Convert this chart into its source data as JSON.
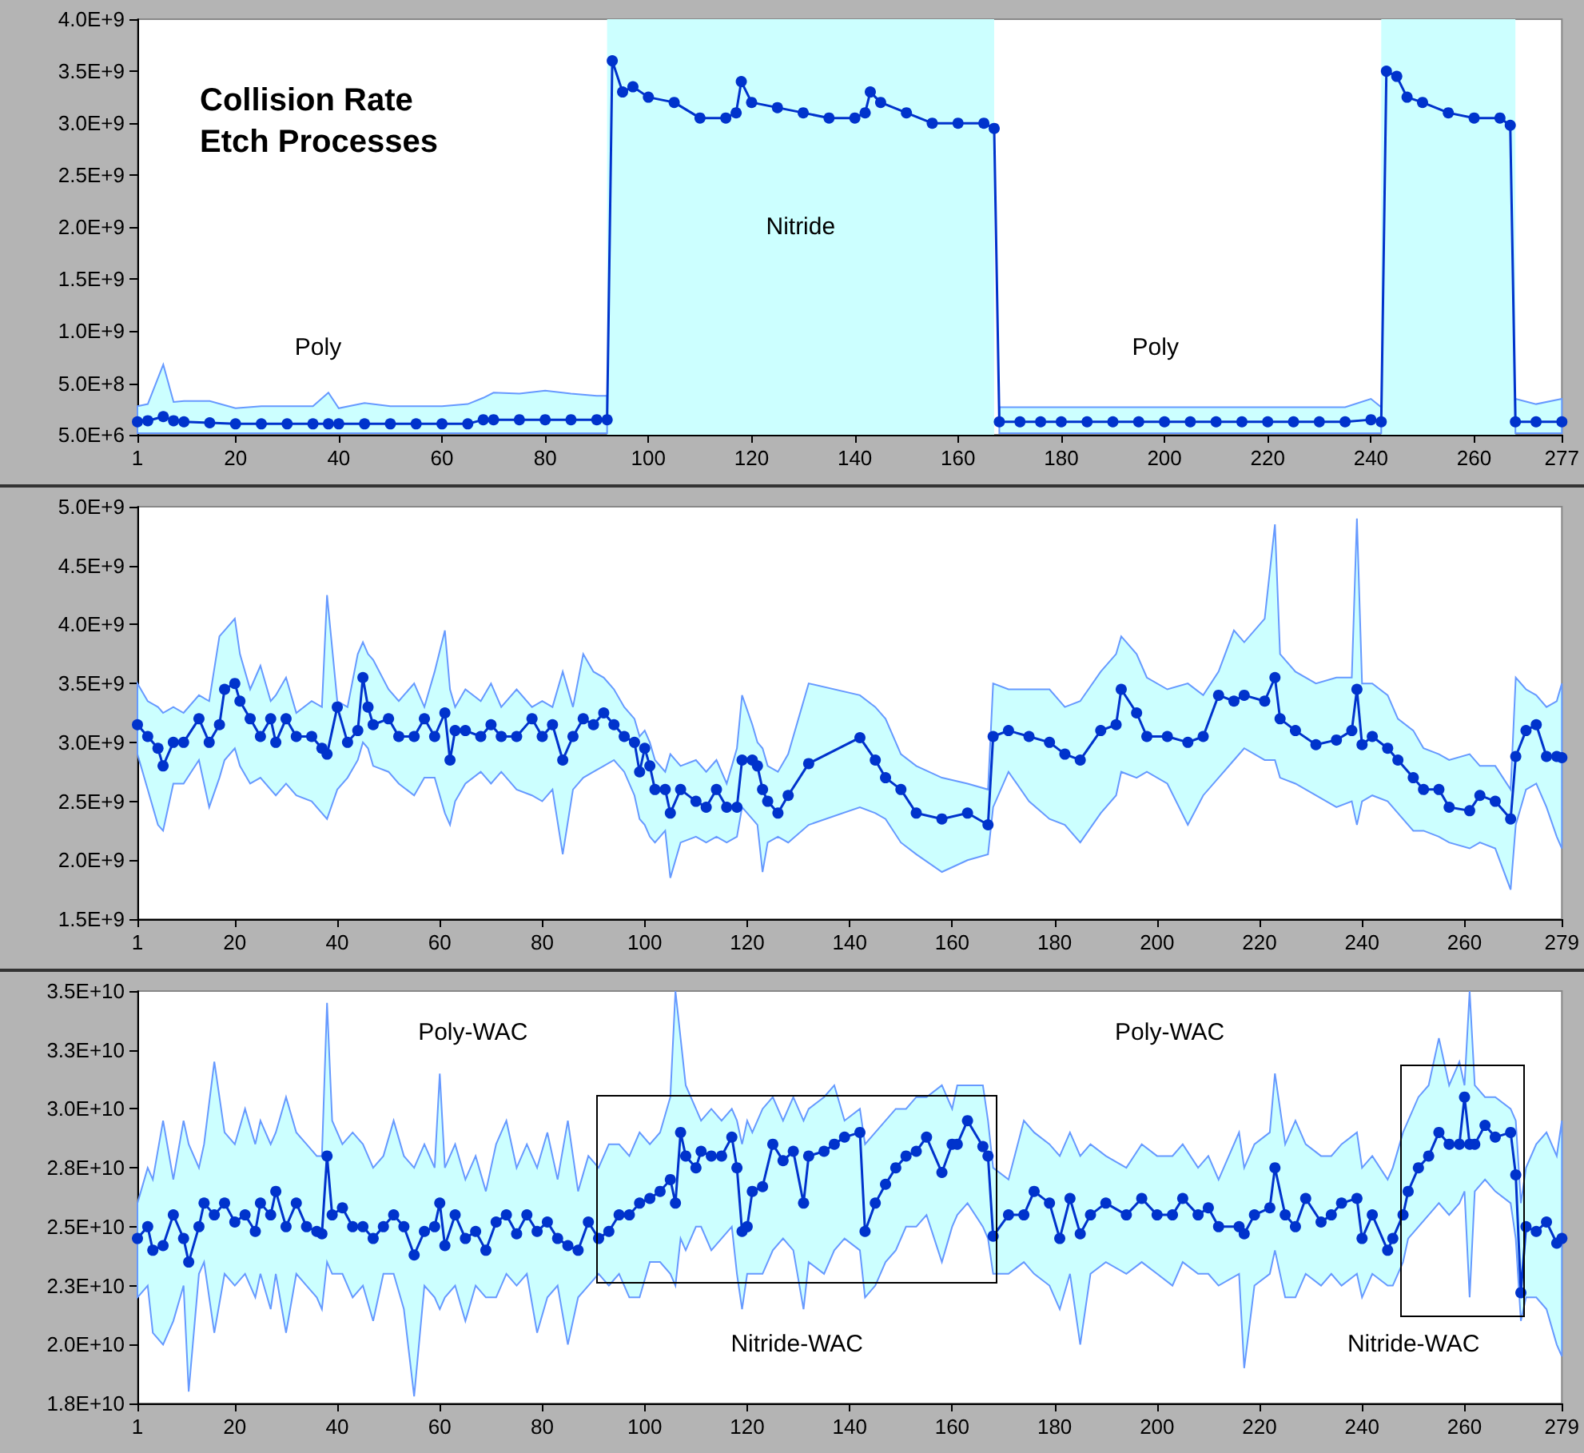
{
  "chart_data": [
    {
      "type": "line",
      "title": "Collision Rate Etch Processes",
      "marker": "circle",
      "xlim": [
        1,
        277
      ],
      "xticks": [
        1,
        20,
        40,
        60,
        80,
        100,
        120,
        140,
        160,
        180,
        200,
        220,
        240,
        260,
        277
      ],
      "ylim": [
        5000000.0,
        4000000000.0
      ],
      "yticks": [
        {
          "value": 5000000.0,
          "label": "5.0E+6"
        },
        {
          "value": 500000000.0,
          "label": "5.0E+8"
        },
        {
          "value": 1000000000.0,
          "label": "1.0E+9"
        },
        {
          "value": 1500000000.0,
          "label": "1.5E+9"
        },
        {
          "value": 2000000000.0,
          "label": "2.0E+9"
        },
        {
          "value": 2500000000.0,
          "label": "2.5E+9"
        },
        {
          "value": 3000000000.0,
          "label": "3.0E+9"
        },
        {
          "value": 3500000000.0,
          "label": "3.5E+9"
        },
        {
          "value": 4000000000.0,
          "label": "4.0E+9"
        }
      ],
      "x": [
        1,
        3,
        6,
        8,
        10,
        15,
        20,
        25,
        30,
        35,
        38,
        40,
        45,
        50,
        55,
        60,
        65,
        68,
        70,
        75,
        80,
        85,
        90,
        92,
        93,
        95,
        97,
        100,
        105,
        110,
        115,
        117,
        118,
        120,
        125,
        130,
        135,
        140,
        142,
        143,
        145,
        150,
        155,
        160,
        165,
        167,
        168,
        172,
        176,
        180,
        185,
        190,
        195,
        200,
        205,
        210,
        215,
        220,
        225,
        230,
        235,
        240,
        242,
        243,
        245,
        247,
        250,
        255,
        260,
        265,
        267,
        268,
        272,
        277
      ],
      "series": [
        {
          "color": "#0033cc",
          "values": [
            130000000.0,
            140000000.0,
            180000000.0,
            140000000.0,
            130000000.0,
            120000000.0,
            110000000.0,
            110000000.0,
            110000000.0,
            110000000.0,
            110000000.0,
            110000000.0,
            110000000.0,
            110000000.0,
            110000000.0,
            110000000.0,
            110000000.0,
            150000000.0,
            150000000.0,
            150000000.0,
            150000000.0,
            150000000.0,
            150000000.0,
            150000000.0,
            3600000000.0,
            3300000000.0,
            3350000000.0,
            3250000000.0,
            3200000000.0,
            3050000000.0,
            3050000000.0,
            3100000000.0,
            3400000000.0,
            3200000000.0,
            3150000000.0,
            3100000000.0,
            3050000000.0,
            3050000000.0,
            3100000000.0,
            3300000000.0,
            3200000000.0,
            3100000000.0,
            3000000000.0,
            3000000000.0,
            3000000000.0,
            2950000000.0,
            130000000.0,
            130000000.0,
            130000000.0,
            130000000.0,
            130000000.0,
            130000000.0,
            130000000.0,
            130000000.0,
            130000000.0,
            130000000.0,
            130000000.0,
            130000000.0,
            130000000.0,
            130000000.0,
            130000000.0,
            150000000.0,
            130000000.0,
            3500000000.0,
            3450000000.0,
            3250000000.0,
            3200000000.0,
            3100000000.0,
            3050000000.0,
            3050000000.0,
            2980000000.0,
            130000000.0,
            130000000.0,
            130000000.0
          ],
          "lower": [
            20000000.0,
            20000000.0,
            20000000.0,
            20000000.0,
            20000000.0,
            20000000.0,
            20000000.0,
            20000000.0,
            20000000.0,
            20000000.0,
            20000000.0,
            20000000.0,
            20000000.0,
            20000000.0,
            20000000.0,
            20000000.0,
            20000000.0,
            20000000.0,
            20000000.0,
            20000000.0,
            20000000.0,
            20000000.0,
            20000000.0,
            20000000.0,
            null,
            null,
            null,
            null,
            null,
            null,
            null,
            null,
            null,
            null,
            null,
            null,
            null,
            null,
            null,
            null,
            null,
            null,
            null,
            null,
            null,
            null,
            20000000.0,
            20000000.0,
            20000000.0,
            20000000.0,
            20000000.0,
            20000000.0,
            20000000.0,
            20000000.0,
            20000000.0,
            20000000.0,
            20000000.0,
            20000000.0,
            20000000.0,
            20000000.0,
            20000000.0,
            20000000.0,
            20000000.0,
            null,
            null,
            null,
            null,
            null,
            null,
            null,
            null,
            20000000.0,
            20000000.0,
            20000000.0
          ],
          "upper": [
            280000000.0,
            300000000.0,
            680000000.0,
            320000000.0,
            330000000.0,
            330000000.0,
            260000000.0,
            280000000.0,
            280000000.0,
            280000000.0,
            410000000.0,
            260000000.0,
            310000000.0,
            280000000.0,
            280000000.0,
            280000000.0,
            300000000.0,
            360000000.0,
            410000000.0,
            400000000.0,
            430000000.0,
            400000000.0,
            380000000.0,
            380000000.0,
            null,
            null,
            null,
            null,
            null,
            null,
            null,
            null,
            null,
            null,
            null,
            null,
            null,
            null,
            null,
            null,
            null,
            null,
            null,
            null,
            null,
            null,
            270000000.0,
            270000000.0,
            270000000.0,
            270000000.0,
            270000000.0,
            270000000.0,
            270000000.0,
            270000000.0,
            270000000.0,
            270000000.0,
            270000000.0,
            270000000.0,
            270000000.0,
            270000000.0,
            270000000.0,
            350000000.0,
            270000000.0,
            null,
            null,
            null,
            null,
            null,
            null,
            null,
            null,
            350000000.0,
            300000000.0,
            350000000.0
          ]
        }
      ],
      "bands": [
        {
          "axis": "x",
          "from": 92,
          "to": 167,
          "label": "Nitride",
          "color": "#ccffff"
        },
        {
          "axis": "x",
          "from": 242,
          "to": 268,
          "color": "#ccffff"
        }
      ],
      "annotations": [
        "Poly",
        "Poly"
      ]
    },
    {
      "type": "line",
      "marker": "circle",
      "xlim": [
        1,
        279
      ],
      "xticks": [
        1,
        20,
        40,
        60,
        80,
        100,
        120,
        140,
        160,
        180,
        200,
        220,
        240,
        260,
        279
      ],
      "ylim": [
        1500000000.0,
        5000000000.0
      ],
      "yticks": [
        {
          "value": 1500000000.0,
          "label": "1.5E+9"
        },
        {
          "value": 2000000000.0,
          "label": "2.0E+9"
        },
        {
          "value": 2500000000.0,
          "label": "2.5E+9"
        },
        {
          "value": 3000000000.0,
          "label": "3.0E+9"
        },
        {
          "value": 3500000000.0,
          "label": "3.5E+9"
        },
        {
          "value": 4000000000.0,
          "label": "4.0E+9"
        },
        {
          "value": 4500000000.0,
          "label": "4.5E+9"
        },
        {
          "value": 5000000000.0,
          "label": "5.0E+9"
        }
      ],
      "x": [
        1,
        3,
        5,
        6,
        8,
        10,
        13,
        15,
        17,
        18,
        20,
        21,
        23,
        25,
        27,
        28,
        30,
        32,
        35,
        37,
        38,
        40,
        42,
        44,
        45,
        46,
        47,
        50,
        52,
        55,
        57,
        59,
        61,
        62,
        63,
        65,
        68,
        70,
        72,
        75,
        78,
        80,
        82,
        84,
        86,
        88,
        90,
        92,
        94,
        96,
        98,
        99,
        100,
        101,
        102,
        104,
        105,
        107,
        110,
        112,
        114,
        116,
        118,
        119,
        121,
        122,
        123,
        124,
        126,
        128,
        132,
        142,
        145,
        147,
        150,
        153,
        158,
        163,
        167,
        168,
        171,
        175,
        179,
        182,
        185,
        189,
        192,
        193,
        196,
        198,
        202,
        206,
        209,
        212,
        215,
        217,
        221,
        223,
        224,
        227,
        231,
        235,
        238,
        239,
        240,
        242,
        245,
        247,
        250,
        252,
        255,
        257,
        261,
        263,
        266,
        269,
        270,
        272,
        274,
        276,
        278,
        279
      ],
      "series": [
        {
          "color": "#0033cc",
          "values": [
            3150000000.0,
            3050000000.0,
            2950000000.0,
            2800000000.0,
            3000000000.0,
            3000000000.0,
            3200000000.0,
            3000000000.0,
            3150000000.0,
            3450000000.0,
            3500000000.0,
            3350000000.0,
            3200000000.0,
            3050000000.0,
            3200000000.0,
            3000000000.0,
            3200000000.0,
            3050000000.0,
            3050000000.0,
            2950000000.0,
            2900000000.0,
            3300000000.0,
            3000000000.0,
            3100000000.0,
            3550000000.0,
            3300000000.0,
            3150000000.0,
            3200000000.0,
            3050000000.0,
            3050000000.0,
            3200000000.0,
            3050000000.0,
            3250000000.0,
            2850000000.0,
            3100000000.0,
            3100000000.0,
            3050000000.0,
            3150000000.0,
            3050000000.0,
            3050000000.0,
            3200000000.0,
            3050000000.0,
            3150000000.0,
            2850000000.0,
            3050000000.0,
            3200000000.0,
            3150000000.0,
            3250000000.0,
            3150000000.0,
            3050000000.0,
            3000000000.0,
            2750000000.0,
            2950000000.0,
            2800000000.0,
            2600000000.0,
            2600000000.0,
            2400000000.0,
            2600000000.0,
            2500000000.0,
            2450000000.0,
            2600000000.0,
            2450000000.0,
            2450000000.0,
            2850000000.0,
            2850000000.0,
            2800000000.0,
            2600000000.0,
            2500000000.0,
            2400000000.0,
            2550000000.0,
            2820000000.0,
            3040000000.0,
            2850000000.0,
            2700000000.0,
            2600000000.0,
            2400000000.0,
            2350000000.0,
            2400000000.0,
            2300000000.0,
            3050000000.0,
            3100000000.0,
            3050000000.0,
            3000000000.0,
            2900000000.0,
            2850000000.0,
            3100000000.0,
            3150000000.0,
            3450000000.0,
            3250000000.0,
            3050000000.0,
            3050000000.0,
            3000000000.0,
            3050000000.0,
            3400000000.0,
            3350000000.0,
            3400000000.0,
            3350000000.0,
            3550000000.0,
            3200000000.0,
            3100000000.0,
            2980000000.0,
            3020000000.0,
            3100000000.0,
            3450000000.0,
            2980000000.0,
            3050000000.0,
            2950000000.0,
            2850000000.0,
            2700000000.0,
            2600000000.0,
            2600000000.0,
            2450000000.0,
            2420000000.0,
            2550000000.0,
            2500000000.0,
            2350000000.0,
            2880000000.0,
            3100000000.0,
            3150000000.0,
            2880000000.0,
            2880000000.0,
            2870000000.0
          ],
          "lower": [
            2900000000.0,
            2600000000.0,
            2300000000.0,
            2250000000.0,
            2650000000.0,
            2650000000.0,
            2850000000.0,
            2450000000.0,
            2700000000.0,
            2850000000.0,
            2950000000.0,
            2800000000.0,
            2650000000.0,
            2700000000.0,
            2600000000.0,
            2550000000.0,
            2650000000.0,
            2550000000.0,
            2500000000.0,
            2400000000.0,
            2350000000.0,
            2600000000.0,
            2700000000.0,
            2850000000.0,
            3000000000.0,
            2950000000.0,
            2800000000.0,
            2750000000.0,
            2650000000.0,
            2550000000.0,
            2700000000.0,
            2700000000.0,
            2400000000.0,
            2300000000.0,
            2500000000.0,
            2650000000.0,
            2750000000.0,
            2650000000.0,
            2750000000.0,
            2600000000.0,
            2550000000.0,
            2500000000.0,
            2600000000.0,
            2050000000.0,
            2600000000.0,
            2700000000.0,
            2750000000.0,
            2800000000.0,
            2850000000.0,
            2750000000.0,
            2550000000.0,
            2350000000.0,
            2300000000.0,
            2200000000.0,
            2150000000.0,
            2250000000.0,
            1850000000.0,
            2150000000.0,
            2200000000.0,
            2150000000.0,
            2200000000.0,
            2150000000.0,
            2200000000.0,
            2450000000.0,
            2350000000.0,
            2300000000.0,
            1900000000.0,
            2150000000.0,
            2200000000.0,
            2150000000.0,
            2300000000.0,
            2450000000.0,
            2400000000.0,
            2350000000.0,
            2150000000.0,
            2050000000.0,
            1900000000.0,
            2000000000.0,
            2050000000.0,
            2450000000.0,
            2750000000.0,
            2500000000.0,
            2350000000.0,
            2300000000.0,
            2150000000.0,
            2400000000.0,
            2550000000.0,
            2750000000.0,
            2700000000.0,
            2750000000.0,
            2650000000.0,
            2300000000.0,
            2550000000.0,
            2700000000.0,
            2850000000.0,
            2950000000.0,
            2850000000.0,
            2850000000.0,
            2700000000.0,
            2650000000.0,
            2550000000.0,
            2450000000.0,
            2500000000.0,
            2300000000.0,
            2500000000.0,
            2550000000.0,
            2500000000.0,
            2400000000.0,
            2250000000.0,
            2250000000.0,
            2200000000.0,
            2150000000.0,
            2100000000.0,
            2150000000.0,
            2100000000.0,
            1750000000.0,
            2300000000.0,
            2600000000.0,
            2650000000.0,
            2450000000.0,
            2200000000.0,
            2100000000.0
          ],
          "upper": [
            3500000000.0,
            3350000000.0,
            3300000000.0,
            3250000000.0,
            3300000000.0,
            3250000000.0,
            3400000000.0,
            3350000000.0,
            3900000000.0,
            3950000000.0,
            4050000000.0,
            3750000000.0,
            3450000000.0,
            3650000000.0,
            3350000000.0,
            3400000000.0,
            3550000000.0,
            3250000000.0,
            3350000000.0,
            3300000000.0,
            4250000000.0,
            3350000000.0,
            3300000000.0,
            3750000000.0,
            3850000000.0,
            3750000000.0,
            3700000000.0,
            3450000000.0,
            3350000000.0,
            3500000000.0,
            3300000000.0,
            3600000000.0,
            3950000000.0,
            3450000000.0,
            3300000000.0,
            3450000000.0,
            3350000000.0,
            3500000000.0,
            3300000000.0,
            3450000000.0,
            3300000000.0,
            3350000000.0,
            3300000000.0,
            3600000000.0,
            3300000000.0,
            3750000000.0,
            3600000000.0,
            3550000000.0,
            3450000000.0,
            3300000000.0,
            3200000000.0,
            3050000000.0,
            3100000000.0,
            3000000000.0,
            2850000000.0,
            2750000000.0,
            2900000000.0,
            2800000000.0,
            2850000000.0,
            2750000000.0,
            2850000000.0,
            2650000000.0,
            2950000000.0,
            3400000000.0,
            3150000000.0,
            3000000000.0,
            2950000000.0,
            2800000000.0,
            2750000000.0,
            2900000000.0,
            3500000000.0,
            3400000000.0,
            3300000000.0,
            3200000000.0,
            2900000000.0,
            2800000000.0,
            2700000000.0,
            2650000000.0,
            2600000000.0,
            3500000000.0,
            3450000000.0,
            3450000000.0,
            3450000000.0,
            3300000000.0,
            3350000000.0,
            3600000000.0,
            3750000000.0,
            3900000000.0,
            3750000000.0,
            3550000000.0,
            3450000000.0,
            3500000000.0,
            3400000000.0,
            3600000000.0,
            3950000000.0,
            3850000000.0,
            4050000000.0,
            4850000000.0,
            3750000000.0,
            3600000000.0,
            3500000000.0,
            3550000000.0,
            3550000000.0,
            4900000000.0,
            3500000000.0,
            3500000000.0,
            3400000000.0,
            3200000000.0,
            3100000000.0,
            2950000000.0,
            2900000000.0,
            2850000000.0,
            2900000000.0,
            2800000000.0,
            2800000000.0,
            2600000000.0,
            3550000000.0,
            3450000000.0,
            3400000000.0,
            3300000000.0,
            3350000000.0,
            3500000000.0
          ]
        }
      ]
    },
    {
      "type": "line",
      "marker": "circle",
      "xlim": [
        1,
        279
      ],
      "xticks": [
        1,
        20,
        40,
        60,
        80,
        100,
        120,
        140,
        160,
        180,
        200,
        220,
        240,
        260,
        279
      ],
      "ylim": [
        17500000000.0,
        35000000000.0
      ],
      "yticks": [
        {
          "value": 17500000000.0,
          "label": "1.8E+10"
        },
        {
          "value": 20000000000.0,
          "label": "2.0E+10"
        },
        {
          "value": 22500000000.0,
          "label": "2.3E+10"
        },
        {
          "value": 25000000000.0,
          "label": "2.5E+10"
        },
        {
          "value": 27500000000.0,
          "label": "2.8E+10"
        },
        {
          "value": 30000000000.0,
          "label": "3.0E+10"
        },
        {
          "value": 32500000000.0,
          "label": "3.3E+10"
        },
        {
          "value": 35000000000.0,
          "label": "3.5E+10"
        }
      ],
      "x": [
        1,
        3,
        4,
        6,
        8,
        10,
        11,
        13,
        14,
        16,
        18,
        20,
        22,
        24,
        25,
        27,
        28,
        30,
        32,
        34,
        36,
        37,
        38,
        39,
        41,
        43,
        45,
        47,
        49,
        51,
        53,
        55,
        57,
        59,
        60,
        61,
        63,
        65,
        67,
        69,
        71,
        73,
        75,
        77,
        79,
        81,
        83,
        85,
        87,
        89,
        91,
        93,
        95,
        97,
        99,
        101,
        103,
        105,
        106,
        107,
        108,
        110,
        111,
        113,
        115,
        117,
        118,
        119,
        120,
        121,
        123,
        125,
        127,
        129,
        131,
        132,
        135,
        137,
        139,
        142,
        143,
        145,
        147,
        149,
        151,
        153,
        155,
        158,
        160,
        161,
        163,
        166,
        167,
        168,
        171,
        174,
        176,
        179,
        181,
        183,
        185,
        187,
        190,
        194,
        197,
        200,
        203,
        205,
        208,
        210,
        212,
        216,
        217,
        219,
        222,
        223,
        225,
        227,
        229,
        232,
        234,
        236,
        239,
        240,
        242,
        245,
        246,
        248,
        249,
        251,
        253,
        255,
        257,
        259,
        260,
        261,
        262,
        264,
        266,
        269,
        270,
        271,
        272,
        274,
        276,
        278,
        279
      ],
      "series": [
        {
          "color": "#0033cc",
          "values": [
            24500000000.0,
            25000000000.0,
            24000000000.0,
            24200000000.0,
            25500000000.0,
            24500000000.0,
            23500000000.0,
            25000000000.0,
            26000000000.0,
            25500000000.0,
            26000000000.0,
            25200000000.0,
            25500000000.0,
            24800000000.0,
            26000000000.0,
            25500000000.0,
            26500000000.0,
            25000000000.0,
            26000000000.0,
            25000000000.0,
            24800000000.0,
            24700000000.0,
            28000000000.0,
            25500000000.0,
            25800000000.0,
            25000000000.0,
            25000000000.0,
            24500000000.0,
            25000000000.0,
            25500000000.0,
            25000000000.0,
            23800000000.0,
            24800000000.0,
            25000000000.0,
            26000000000.0,
            24200000000.0,
            25500000000.0,
            24500000000.0,
            24800000000.0,
            24000000000.0,
            25200000000.0,
            25500000000.0,
            24700000000.0,
            25500000000.0,
            24800000000.0,
            25200000000.0,
            24500000000.0,
            24200000000.0,
            24000000000.0,
            25200000000.0,
            24500000000.0,
            24800000000.0,
            25500000000.0,
            25500000000.0,
            26000000000.0,
            26200000000.0,
            26500000000.0,
            27000000000.0,
            26000000000.0,
            29000000000.0,
            28000000000.0,
            27500000000.0,
            28200000000.0,
            28000000000.0,
            28000000000.0,
            28800000000.0,
            27500000000.0,
            24800000000.0,
            25000000000.0,
            26500000000.0,
            26700000000.0,
            28500000000.0,
            27800000000.0,
            28200000000.0,
            26000000000.0,
            28000000000.0,
            28200000000.0,
            28500000000.0,
            28800000000.0,
            29000000000.0,
            24800000000.0,
            26000000000.0,
            26800000000.0,
            27500000000.0,
            28000000000.0,
            28200000000.0,
            28800000000.0,
            27300000000.0,
            28500000000.0,
            28500000000.0,
            29500000000.0,
            28400000000.0,
            28000000000.0,
            24600000000.0,
            25500000000.0,
            25500000000.0,
            26500000000.0,
            26000000000.0,
            24500000000.0,
            26200000000.0,
            24700000000.0,
            25500000000.0,
            26000000000.0,
            25500000000.0,
            26200000000.0,
            25500000000.0,
            25500000000.0,
            26200000000.0,
            25500000000.0,
            25800000000.0,
            25000000000.0,
            25000000000.0,
            24700000000.0,
            25500000000.0,
            25800000000.0,
            27500000000.0,
            25500000000.0,
            25000000000.0,
            26200000000.0,
            25200000000.0,
            25500000000.0,
            26000000000.0,
            26200000000.0,
            24500000000.0,
            25500000000.0,
            24000000000.0,
            24500000000.0,
            25500000000.0,
            26500000000.0,
            27500000000.0,
            28000000000.0,
            29000000000.0,
            28500000000.0,
            28500000000.0,
            30500000000.0,
            28500000000.0,
            28500000000.0,
            29300000000.0,
            28800000000.0,
            29000000000.0,
            27200000000.0,
            22200000000.0,
            25000000000.0,
            24800000000.0,
            25200000000.0,
            24300000000.0,
            24500000000.0
          ],
          "lower": [
            22000000000.0,
            22500000000.0,
            20500000000.0,
            20000000000.0,
            21000000000.0,
            22500000000.0,
            18000000000.0,
            23000000000.0,
            23500000000.0,
            20500000000.0,
            23000000000.0,
            22500000000.0,
            23000000000.0,
            22000000000.0,
            23000000000.0,
            21500000000.0,
            23000000000.0,
            20500000000.0,
            23000000000.0,
            22500000000.0,
            22000000000.0,
            21500000000.0,
            23500000000.0,
            23000000000.0,
            23000000000.0,
            22000000000.0,
            22500000000.0,
            21000000000.0,
            23000000000.0,
            23000000000.0,
            21500000000.0,
            17800000000.0,
            22500000000.0,
            22000000000.0,
            21500000000.0,
            22000000000.0,
            22500000000.0,
            21000000000.0,
            22500000000.0,
            22000000000.0,
            22000000000.0,
            23000000000.0,
            22500000000.0,
            23000000000.0,
            20500000000.0,
            22000000000.0,
            22500000000.0,
            20000000000.0,
            22000000000.0,
            22500000000.0,
            23000000000.0,
            22500000000.0,
            23000000000.0,
            22000000000.0,
            22000000000.0,
            23500000000.0,
            23500000000.0,
            23000000000.0,
            22500000000.0,
            24500000000.0,
            24000000000.0,
            25000000000.0,
            25000000000.0,
            24000000000.0,
            24500000000.0,
            25000000000.0,
            23000000000.0,
            21500000000.0,
            23000000000.0,
            23000000000.0,
            23000000000.0,
            24000000000.0,
            24500000000.0,
            24000000000.0,
            21500000000.0,
            23500000000.0,
            23000000000.0,
            24000000000.0,
            24500000000.0,
            24000000000.0,
            22000000000.0,
            22500000000.0,
            23500000000.0,
            24000000000.0,
            25000000000.0,
            25000000000.0,
            25500000000.0,
            23500000000.0,
            25000000000.0,
            25500000000.0,
            26000000000.0,
            25000000000.0,
            24500000000.0,
            23000000000.0,
            23000000000.0,
            23500000000.0,
            23000000000.0,
            22500000000.0,
            21500000000.0,
            23000000000.0,
            20000000000.0,
            23000000000.0,
            23500000000.0,
            23000000000.0,
            23500000000.0,
            23000000000.0,
            22500000000.0,
            23500000000.0,
            23000000000.0,
            23000000000.0,
            22500000000.0,
            23000000000.0,
            19000000000.0,
            22500000000.0,
            23000000000.0,
            24000000000.0,
            22000000000.0,
            22000000000.0,
            23000000000.0,
            22500000000.0,
            23000000000.0,
            22500000000.0,
            23000000000.0,
            22000000000.0,
            23000000000.0,
            22500000000.0,
            22500000000.0,
            23500000000.0,
            24500000000.0,
            25000000000.0,
            25500000000.0,
            26000000000.0,
            25500000000.0,
            26000000000.0,
            26500000000.0,
            22000000000.0,
            26500000000.0,
            27000000000.0,
            26500000000.0,
            26000000000.0,
            24500000000.0,
            21000000000.0,
            22000000000.0,
            22000000000.0,
            21500000000.0,
            20000000000.0,
            19500000000.0
          ],
          "upper": [
            26000000000.0,
            27500000000.0,
            27000000000.0,
            29500000000.0,
            27000000000.0,
            29500000000.0,
            28500000000.0,
            27500000000.0,
            28500000000.0,
            32000000000.0,
            29000000000.0,
            28500000000.0,
            30000000000.0,
            28500000000.0,
            29500000000.0,
            28500000000.0,
            29000000000.0,
            30500000000.0,
            29000000000.0,
            28500000000.0,
            28000000000.0,
            28000000000.0,
            34500000000.0,
            29500000000.0,
            28500000000.0,
            29000000000.0,
            28500000000.0,
            27500000000.0,
            28000000000.0,
            29500000000.0,
            28000000000.0,
            27500000000.0,
            28500000000.0,
            27500000000.0,
            31500000000.0,
            27500000000.0,
            28500000000.0,
            27000000000.0,
            28000000000.0,
            26500000000.0,
            28500000000.0,
            29500000000.0,
            27500000000.0,
            28500000000.0,
            27500000000.0,
            29000000000.0,
            27000000000.0,
            29500000000.0,
            26500000000.0,
            28000000000.0,
            27500000000.0,
            28500000000.0,
            28500000000.0,
            28000000000.0,
            29000000000.0,
            28500000000.0,
            29000000000.0,
            30500000000.0,
            35000000000.0,
            33000000000.0,
            31000000000.0,
            30000000000.0,
            29500000000.0,
            30000000000.0,
            29500000000.0,
            30000000000.0,
            29500000000.0,
            28500000000.0,
            29500000000.0,
            29000000000.0,
            30000000000.0,
            30500000000.0,
            29500000000.0,
            30500000000.0,
            29500000000.0,
            30000000000.0,
            30500000000.0,
            31000000000.0,
            29500000000.0,
            30000000000.0,
            28500000000.0,
            29000000000.0,
            29500000000.0,
            30000000000.0,
            30000000000.0,
            30500000000.0,
            30500000000.0,
            31000000000.0,
            30000000000.0,
            31000000000.0,
            31000000000.0,
            31000000000.0,
            29500000000.0,
            27500000000.0,
            27000000000.0,
            29500000000.0,
            29000000000.0,
            28500000000.0,
            28000000000.0,
            29000000000.0,
            28000000000.0,
            28500000000.0,
            28000000000.0,
            27500000000.0,
            28500000000.0,
            28000000000.0,
            28000000000.0,
            28500000000.0,
            27500000000.0,
            28000000000.0,
            27000000000.0,
            29000000000.0,
            27500000000.0,
            28500000000.0,
            29000000000.0,
            31500000000.0,
            28500000000.0,
            29500000000.0,
            28500000000.0,
            28000000000.0,
            28000000000.0,
            28500000000.0,
            29000000000.0,
            27500000000.0,
            28000000000.0,
            27000000000.0,
            27500000000.0,
            29000000000.0,
            29500000000.0,
            30500000000.0,
            31000000000.0,
            33000000000.0,
            31000000000.0,
            32000000000.0,
            31000000000.0,
            35000000000.0,
            31000000000.0,
            30500000000.0,
            30500000000.0,
            30000000000.0,
            29500000000.0,
            26000000000.0,
            27500000000.0,
            28500000000.0,
            29000000000.0,
            28000000000.0,
            29500000000.0
          ]
        }
      ],
      "annotations": [
        "Poly-WAC",
        "Poly-WAC",
        "Nitride-WAC",
        "Nitride-WAC"
      ]
    }
  ]
}
